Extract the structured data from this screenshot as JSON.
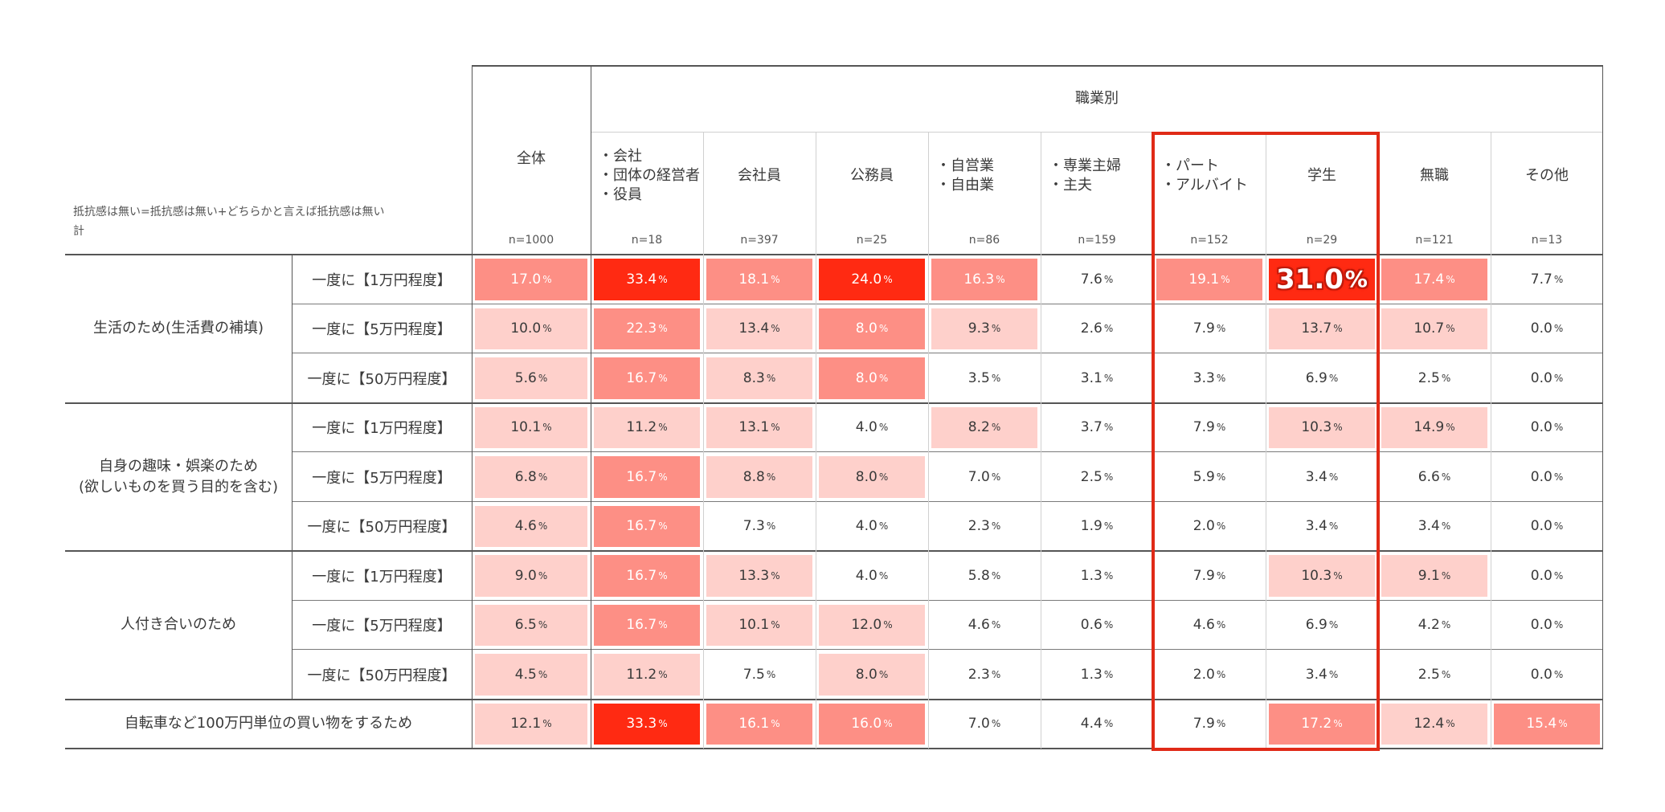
{
  "header": {
    "note_line1": "抵抗感は無い=抵抗感は無い+どちらかと言えば抵抗感は無い",
    "note_line2": "計",
    "total_label": "全体",
    "occupation_group_label": "職業別",
    "columns": [
      {
        "label": "全体",
        "n": "n=1000"
      },
      {
        "label": "・会社\n・団体の経営者\n・役員",
        "n": "n=18"
      },
      {
        "label": "会社員",
        "n": "n=397"
      },
      {
        "label": "公務員",
        "n": "n=25"
      },
      {
        "label": "・自営業\n・自由業",
        "n": "n=86"
      },
      {
        "label": "・専業主婦\n・主夫",
        "n": "n=159"
      },
      {
        "label": "・パート\n・アルバイト",
        "n": "n=152"
      },
      {
        "label": "学生",
        "n": "n=29"
      },
      {
        "label": "無職",
        "n": "n=121"
      },
      {
        "label": "その他",
        "n": "n=13"
      }
    ]
  },
  "colors": {
    "heat_high": "#ff2a12",
    "heat_mid": "#fd8f85",
    "heat_low": "#fed0cb",
    "none": "#ffffff",
    "highlight_border": "#e02a17"
  },
  "chart_data": {
    "type": "heatmap",
    "percent_symbol": "%",
    "highlight_columns": [
      6,
      7
    ],
    "emphasized_cell": {
      "row": 0,
      "col": 7
    },
    "groups": [
      {
        "label": "生活のため(生活費の補填)",
        "rows": [
          0,
          1,
          2
        ]
      },
      {
        "label": "自身の趣味・娯楽のため\n(欲しいものを買う目的を含む)",
        "rows": [
          3,
          4,
          5
        ]
      },
      {
        "label": "人付き合いのため",
        "rows": [
          6,
          7,
          8
        ]
      },
      {
        "label": "自転車など100万円単位の買い物をするため",
        "rows": [
          9
        ]
      }
    ],
    "rows": [
      {
        "label": "一度に【1万円程度】",
        "values": [
          17.0,
          33.4,
          18.1,
          24.0,
          16.3,
          7.6,
          19.1,
          31.0,
          17.4,
          7.7
        ],
        "shade": [
          2,
          3,
          2,
          3,
          2,
          0,
          2,
          3,
          2,
          0
        ]
      },
      {
        "label": "一度に【5万円程度】",
        "values": [
          10.0,
          22.3,
          13.4,
          8.0,
          9.3,
          2.6,
          7.9,
          13.7,
          10.7,
          0.0
        ],
        "shade": [
          1,
          2,
          1,
          2,
          1,
          0,
          0,
          1,
          1,
          0
        ]
      },
      {
        "label": "一度に【50万円程度】",
        "values": [
          5.6,
          16.7,
          8.3,
          8.0,
          3.5,
          3.1,
          3.3,
          6.9,
          2.5,
          0.0
        ],
        "shade": [
          1,
          2,
          1,
          2,
          0,
          0,
          0,
          0,
          0,
          0
        ]
      },
      {
        "label": "一度に【1万円程度】",
        "values": [
          10.1,
          11.2,
          13.1,
          4.0,
          8.2,
          3.7,
          7.9,
          10.3,
          14.9,
          0.0
        ],
        "shade": [
          1,
          1,
          1,
          0,
          1,
          0,
          0,
          1,
          1,
          0
        ]
      },
      {
        "label": "一度に【5万円程度】",
        "values": [
          6.8,
          16.7,
          8.8,
          8.0,
          7.0,
          2.5,
          5.9,
          3.4,
          6.6,
          0.0
        ],
        "shade": [
          1,
          2,
          1,
          1,
          0,
          0,
          0,
          0,
          0,
          0
        ]
      },
      {
        "label": "一度に【50万円程度】",
        "values": [
          4.6,
          16.7,
          7.3,
          4.0,
          2.3,
          1.9,
          2.0,
          3.4,
          3.4,
          0.0
        ],
        "shade": [
          1,
          2,
          0,
          0,
          0,
          0,
          0,
          0,
          0,
          0
        ]
      },
      {
        "label": "一度に【1万円程度】",
        "values": [
          9.0,
          16.7,
          13.3,
          4.0,
          5.8,
          1.3,
          7.9,
          10.3,
          9.1,
          0.0
        ],
        "shade": [
          1,
          2,
          1,
          0,
          0,
          0,
          0,
          1,
          1,
          0
        ]
      },
      {
        "label": "一度に【5万円程度】",
        "values": [
          6.5,
          16.7,
          10.1,
          12.0,
          4.6,
          0.6,
          4.6,
          6.9,
          4.2,
          0.0
        ],
        "shade": [
          1,
          2,
          1,
          1,
          0,
          0,
          0,
          0,
          0,
          0
        ]
      },
      {
        "label": "一度に【50万円程度】",
        "values": [
          4.5,
          11.2,
          7.5,
          8.0,
          2.3,
          1.3,
          2.0,
          3.4,
          2.5,
          0.0
        ],
        "shade": [
          1,
          1,
          0,
          1,
          0,
          0,
          0,
          0,
          0,
          0
        ]
      },
      {
        "label": "",
        "values": [
          12.1,
          33.3,
          16.1,
          16.0,
          7.0,
          4.4,
          7.9,
          17.2,
          12.4,
          15.4
        ],
        "shade": [
          1,
          3,
          2,
          2,
          0,
          0,
          0,
          2,
          1,
          2
        ]
      }
    ]
  }
}
